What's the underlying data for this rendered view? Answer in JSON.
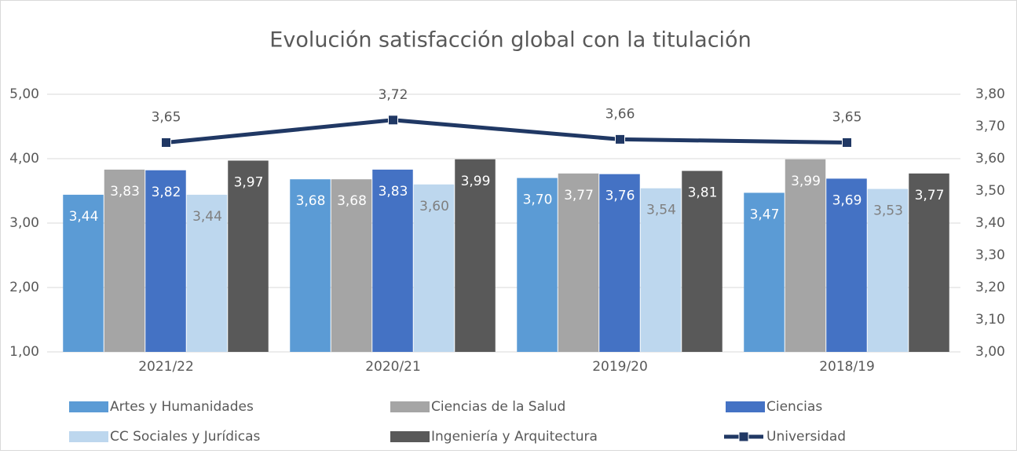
{
  "chart_data": {
    "type": "bar",
    "title": "Evolución satisfacción global con la titulación",
    "categories": [
      "2021/22",
      "2020/21",
      "2019/20",
      "2018/19"
    ],
    "series": [
      {
        "name": "Artes y Humanidades",
        "color": "#5b9bd5",
        "label_color": "#ffffff",
        "values": [
          3.44,
          3.68,
          3.7,
          3.47
        ],
        "value_labels": [
          "3,44",
          "3,68",
          "3,70",
          "3,47"
        ]
      },
      {
        "name": "Ciencias de la Salud",
        "color": "#a5a5a5",
        "label_color": "#ffffff",
        "values": [
          3.83,
          3.68,
          3.77,
          3.99
        ],
        "value_labels": [
          "3,83",
          "3,68",
          "3,77",
          "3,99"
        ]
      },
      {
        "name": "Ciencias",
        "color": "#4472c4",
        "label_color": "#ffffff",
        "values": [
          3.82,
          3.83,
          3.76,
          3.69
        ],
        "value_labels": [
          "3,82",
          "3,83",
          "3,76",
          "3,69"
        ]
      },
      {
        "name": "CC Sociales y Jurídicas",
        "color": "#bdd7ee",
        "label_color": "#7f7f7f",
        "values": [
          3.44,
          3.6,
          3.54,
          3.53
        ],
        "value_labels": [
          "3,44",
          "3,60",
          "3,54",
          "3,53"
        ]
      },
      {
        "name": "Ingeniería y Arquitectura",
        "color": "#595959",
        "label_color": "#ffffff",
        "values": [
          3.97,
          3.99,
          3.81,
          3.77
        ],
        "value_labels": [
          "3,97",
          "3,99",
          "3,81",
          "3,77"
        ]
      },
      {
        "name": "Universidad",
        "type": "line",
        "axis": "y2",
        "color": "#203864",
        "label_color": "#595959",
        "values": [
          3.65,
          3.72,
          3.66,
          3.65
        ],
        "value_labels": [
          "3,65",
          "3,72",
          "3,66",
          "3,65"
        ]
      }
    ],
    "ylim": [
      1,
      5
    ],
    "yticks": [
      {
        "value": 1,
        "label": "1,00"
      },
      {
        "value": 2,
        "label": "2,00"
      },
      {
        "value": 3,
        "label": "3,00"
      },
      {
        "value": 4,
        "label": "4,00"
      },
      {
        "value": 5,
        "label": "5,00"
      }
    ],
    "y2lim": [
      3,
      3.8
    ],
    "y2ticks": [
      {
        "value": 3,
        "label": "3,00"
      },
      {
        "value": 3.1,
        "label": "3,10"
      },
      {
        "value": 3.2,
        "label": "3,20"
      },
      {
        "value": 3.3,
        "label": "3,30"
      },
      {
        "value": 3.4,
        "label": "3,40"
      },
      {
        "value": 3.5,
        "label": "3,50"
      },
      {
        "value": 3.6,
        "label": "3,60"
      },
      {
        "value": 3.7,
        "label": "3,70"
      },
      {
        "value": 3.8,
        "label": "3,80"
      }
    ],
    "grid": true,
    "legend": "bottom"
  }
}
